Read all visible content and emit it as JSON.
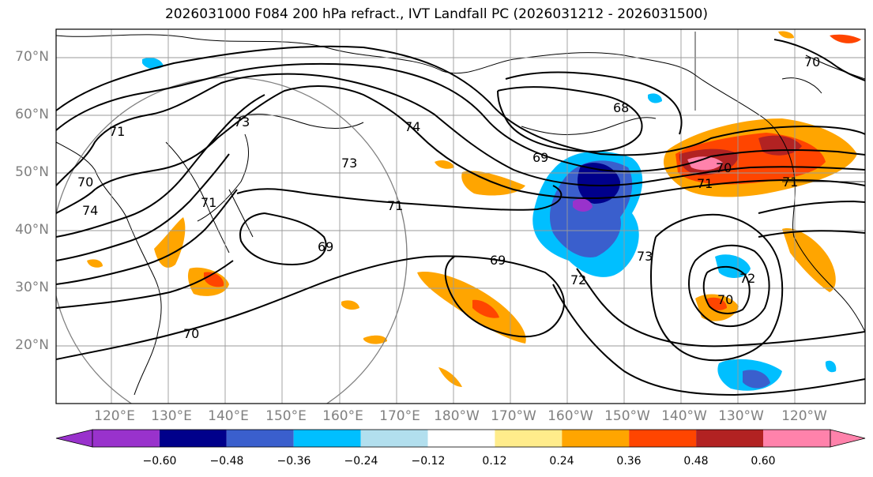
{
  "title": "2026031000 F084 200 hPa refract., IVT Landfall PC (2026031212 - 2026031500)",
  "lat_labels": [
    "70°N",
    "60°N",
    "50°N",
    "40°N",
    "30°N",
    "20°N"
  ],
  "lon_labels": [
    "120°E",
    "130°E",
    "140°E",
    "150°E",
    "160°E",
    "170°E",
    "180°W",
    "170°W",
    "160°W",
    "150°W",
    "140°W",
    "130°W",
    "120°W"
  ],
  "contour_labels": [
    "70",
    "71",
    "74",
    "73",
    "71",
    "69",
    "69",
    "68",
    "69",
    "70",
    "71",
    "73",
    "70",
    "72",
    "73",
    "70",
    "74",
    "71",
    "72",
    "71",
    "70"
  ],
  "colorbar": {
    "ticks": [
      "−0.60",
      "−0.48",
      "−0.36",
      "−0.24",
      "−0.12",
      "0.12",
      "0.24",
      "0.36",
      "0.48",
      "0.60"
    ],
    "colors": [
      "#9932CC",
      "#00008B",
      "#3A5FCD",
      "#00BFFF",
      "#B2DFEE",
      "#FFFFFF",
      "#FFEC8B",
      "#FFA500",
      "#FF4500",
      "#B22222",
      "#FF82AB"
    ]
  }
}
